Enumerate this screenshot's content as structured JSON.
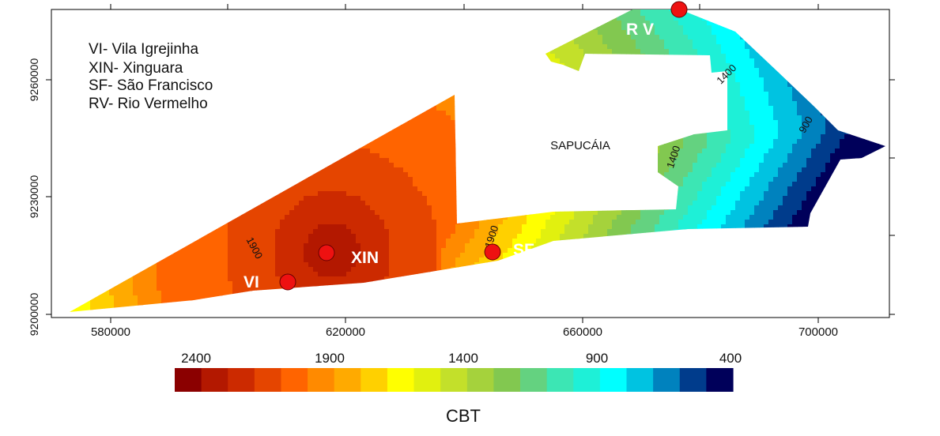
{
  "legend": {
    "lines": [
      "VI- Vila Igrejinha",
      "XIN- Xinguara",
      "SF- São Francisco",
      "RV- Rio Vermelho"
    ]
  },
  "places": {
    "region_label": "SAPUCÁIA",
    "sites": [
      {
        "code": "XIN"
      },
      {
        "code": "SF"
      },
      {
        "code": "VI"
      },
      {
        "code": "R V"
      }
    ],
    "site_color": "#ee1111"
  },
  "contours": {
    "labels": [
      "1900",
      "1900",
      "1400",
      "1400",
      "900"
    ]
  },
  "axes": {
    "x_ticks": [
      "580000",
      "620000",
      "660000",
      "700000"
    ],
    "y_ticks": [
      "9260000",
      "9230000",
      "9200000"
    ]
  },
  "colorbar": {
    "title": "CBT",
    "tick_labels": [
      "2400",
      "1900",
      "1400",
      "900",
      "400"
    ],
    "colors": [
      "#8b0000",
      "#b31800",
      "#cc2a00",
      "#e54500",
      "#ff6400",
      "#ff8a00",
      "#ffaa00",
      "#ffd000",
      "#ffff00",
      "#e1f00f",
      "#c3e02a",
      "#a5d23c",
      "#82c850",
      "#64d280",
      "#3ce6b4",
      "#1ef0d7",
      "#00ffff",
      "#00c3e1",
      "#0082be",
      "#003c8c",
      "#00005a"
    ]
  }
}
